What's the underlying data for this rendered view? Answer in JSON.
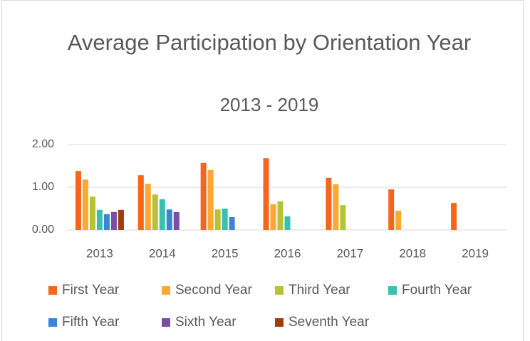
{
  "chart_data": {
    "type": "bar",
    "title": "Average Participation by Orientation Year",
    "subtitle": "2013 - 2019",
    "categories": [
      "2013",
      "2014",
      "2015",
      "2016",
      "2017",
      "2018",
      "2019"
    ],
    "series": [
      {
        "name": "First Year",
        "color": "#f4661b",
        "values": [
          1.38,
          1.28,
          1.57,
          1.68,
          1.22,
          0.95,
          0.63
        ]
      },
      {
        "name": "Second Year",
        "color": "#ffa733",
        "values": [
          1.18,
          1.08,
          1.4,
          0.6,
          1.07,
          0.45,
          null
        ]
      },
      {
        "name": "Third Year",
        "color": "#b5c334",
        "values": [
          0.78,
          0.83,
          0.48,
          0.67,
          0.58,
          null,
          null
        ]
      },
      {
        "name": "Fourth Year",
        "color": "#3cbfae",
        "values": [
          0.47,
          0.72,
          0.5,
          0.32,
          null,
          null,
          null
        ]
      },
      {
        "name": "Fifth Year",
        "color": "#3a86d4",
        "values": [
          0.37,
          0.48,
          0.3,
          null,
          null,
          null,
          null
        ]
      },
      {
        "name": "Sixth Year",
        "color": "#7b4fa6",
        "values": [
          0.42,
          0.42,
          null,
          null,
          null,
          null,
          null
        ]
      },
      {
        "name": "Seventh Year",
        "color": "#a33b0a",
        "values": [
          0.47,
          null,
          null,
          null,
          null,
          null,
          null
        ]
      }
    ],
    "ylim": [
      0,
      2
    ],
    "yticks": [
      {
        "value": 0,
        "label": "0.00"
      },
      {
        "value": 1,
        "label": "1.00"
      },
      {
        "value": 2,
        "label": "2.00"
      }
    ],
    "grid": true,
    "legend": "bottom"
  }
}
